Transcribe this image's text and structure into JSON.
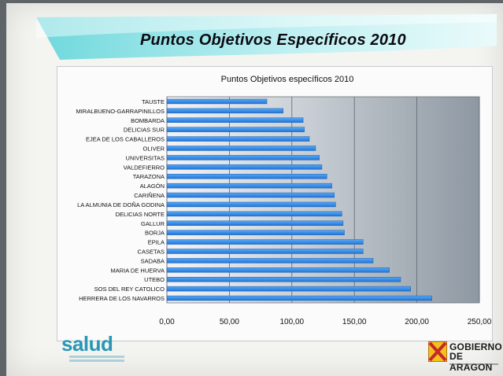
{
  "slide": {
    "title": "Puntos  Objetivos Específicos 2010"
  },
  "logos": {
    "salud_text": "salud",
    "gov_line1": "GOBIERNO",
    "gov_line2": "DE ARAGON"
  },
  "colors": {
    "bar": "#3a8fe8",
    "bar_edge": "#1d5fb4",
    "plot_light": "#eef0f2",
    "plot_dark": "#9aa4ad",
    "banner_cyan": "#7fe1e6",
    "salud_blue": "#2a96b6",
    "aragon_red": "#c4292b",
    "aragon_yellow": "#f2c21a"
  },
  "chart_data": {
    "type": "bar",
    "orientation": "horizontal",
    "title": "Puntos  Objetivos específicos 2010",
    "categories": [
      "TAUSTE",
      "MIRALBUENO-GARRAPINILLOS",
      "BOMBARDA",
      "DELICIAS SUR",
      "EJEA DE LOS CABALLEROS",
      "OLIVER",
      "UNIVERSITAS",
      "VALDEFIERRO",
      "TARAZONA",
      "ALAGÓN",
      "CARIÑENA",
      "LA ALMUNIA DE DOÑA GODINA",
      "DELICIAS NORTE",
      "GALLUR",
      "BORJA",
      "EPILA",
      "CASETAS",
      "SADABA",
      "MARIA DE HUERVA",
      "UTEBO",
      "SOS DEL REY CATOLICO",
      "HERRERA DE LOS NAVARROS"
    ],
    "values": [
      80,
      93,
      109,
      110,
      114,
      119,
      122,
      124,
      128,
      132,
      134,
      135,
      140,
      141,
      142,
      157,
      157,
      165,
      178,
      187,
      195,
      212
    ],
    "xlim": [
      0,
      250
    ],
    "xticks": [
      "0,00",
      "50,00",
      "100,00",
      "150,00",
      "200,00",
      "250,00"
    ],
    "xlabel": "",
    "ylabel": "",
    "grid": true
  }
}
